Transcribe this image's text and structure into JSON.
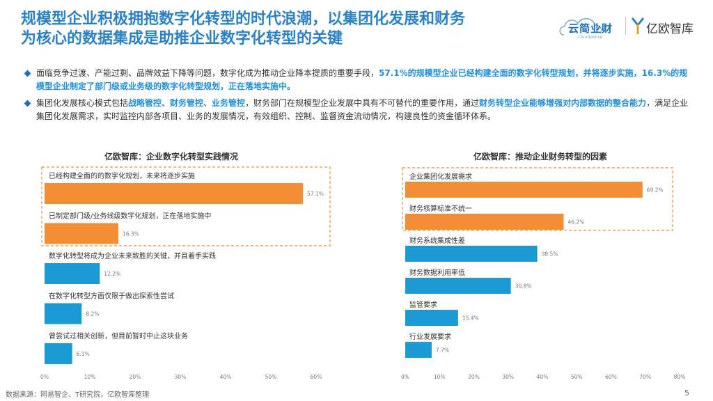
{
  "header": {
    "title_line1": "规模型企业积极拥抱数字化转型的时代浪潮，以集团化发展和财务",
    "title_line2": "为核心的数据集成是助推企业数字化转型的关键"
  },
  "logos": {
    "yunjian_name": "云简业财",
    "yunjian_sub": "Cloudpense",
    "yiou_name": "亿欧智库"
  },
  "bullets": [
    {
      "t1": "面临竞争过渡、产能过剩、品牌效益下降等问题，数字化成为推动企业降本提质的重要手段，",
      "h1": "57.1%的规模型企业已经构建全面的数字化转型规划，并将逐步实施，16.3%的规模型企业制定了部门级或业务级的数字化转型规划，正在落地实施中。"
    },
    {
      "t1": "集团化发展核心模式包括",
      "h1": "战略管控、财务管控、业务管控",
      "t2": "，财务部门在规模型企业发展中具有不可替代的重要作用，通过",
      "h2": "财务转型企业能够增强对内部数据的整合能力",
      "t3": "，满足企业集团化发展需求，实时监控内部各项目、业务的发展情况，有效组织、控制、监督资金流动情况，构建良性的资金循环体系。"
    }
  ],
  "colors": {
    "orange": "#f28e35",
    "blue": "#1c9ad6",
    "title": "#2a82c4",
    "highlight_box": "#f28e35"
  },
  "chart_data": [
    {
      "type": "bar",
      "orientation": "horizontal",
      "title": "亿欧智库：企业数字化转型实践情况",
      "categories": [
        "已经构建全面的的数字化规划，未来将逐步实施",
        "已制定部门级/业务线级数字化规划，正在落地实施中",
        "数字化转型将成为企业未来致胜的关键，并且着手实践",
        "在数字化转型方面仅限于做出探索性尝试",
        "曾尝试过相关创新，但目前暂时中止这块业务"
      ],
      "values": [
        57.1,
        16.3,
        12.2,
        8.2,
        6.1
      ],
      "value_labels": [
        "57.1%",
        "16.3%",
        "12.2%",
        "8.2%",
        "6.1%"
      ],
      "bar_colors": [
        "#f28e35",
        "#f28e35",
        "#1c9ad6",
        "#1c9ad6",
        "#1c9ad6"
      ],
      "highlighted": [
        0,
        1
      ],
      "xlim": [
        0,
        60
      ],
      "ticks": [
        "0%",
        "10%",
        "20%",
        "30%",
        "40%",
        "50%",
        "60%"
      ]
    },
    {
      "type": "bar",
      "orientation": "horizontal",
      "title": "亿欧智库：推动企业财务转型的因素",
      "categories": [
        "企业集团化发展需求",
        "财务核算标准不统一",
        "财务系统集成性差",
        "财务数据利用率低",
        "监管要求",
        "行业发展要求"
      ],
      "values": [
        69.2,
        46.2,
        38.5,
        30.8,
        15.4,
        7.7
      ],
      "value_labels": [
        "69.2%",
        "46.2%",
        "38.5%",
        "30.8%",
        "15.4%",
        "7.7%"
      ],
      "bar_colors": [
        "#f28e35",
        "#f28e35",
        "#1c9ad6",
        "#1c9ad6",
        "#1c9ad6",
        "#1c9ad6"
      ],
      "highlighted": [
        0,
        1
      ],
      "xlim": [
        0,
        80
      ],
      "ticks": [
        "0%",
        "10%",
        "20%",
        "30%",
        "40%",
        "50%",
        "60%",
        "70%",
        "80%"
      ]
    }
  ],
  "footer": {
    "source": "数据来源：网易智企、T研究院，亿欧智库整理",
    "page": "5"
  }
}
